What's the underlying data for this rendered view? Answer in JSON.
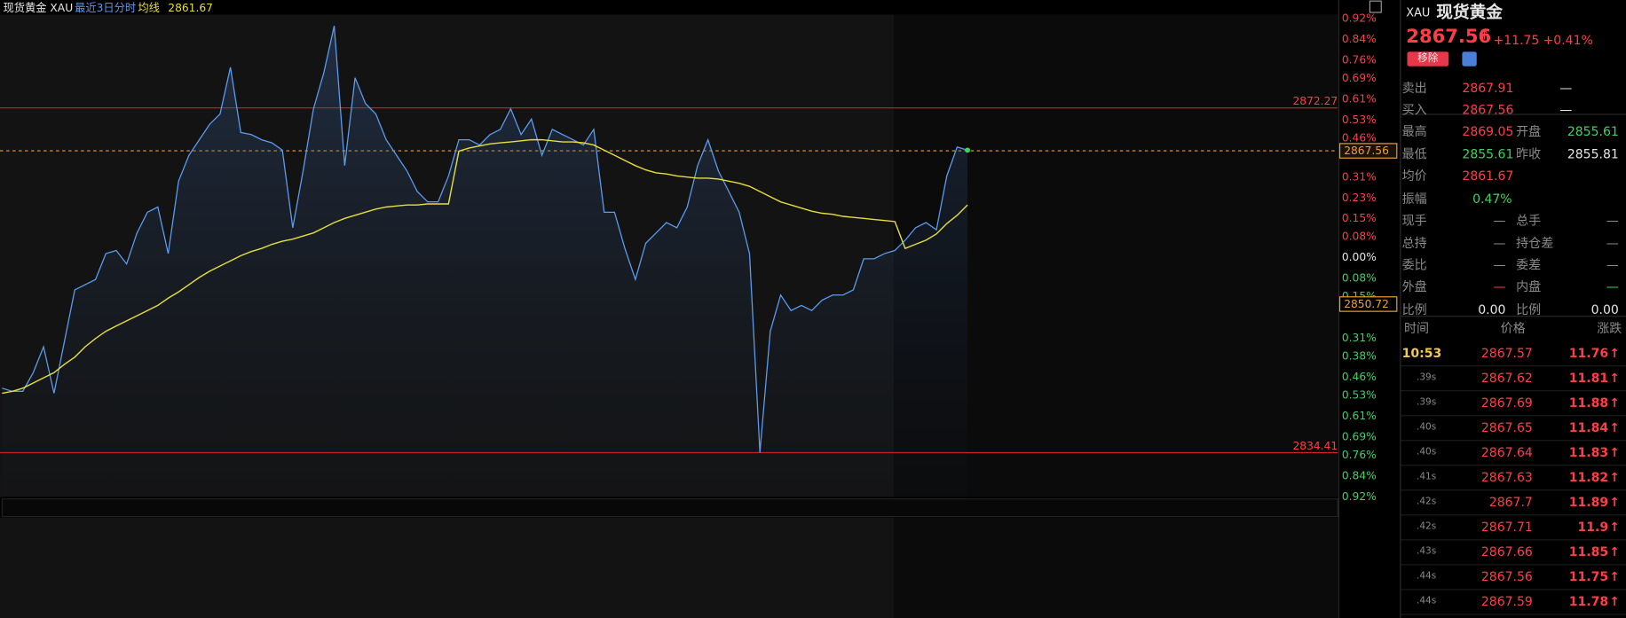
{
  "header": {
    "symbol": "现货黄金 XAU",
    "period": "最近3日分时",
    "ma_value": 2861.67
  },
  "chart_data": {
    "type": "line",
    "ylim": [
      2829.54,
      2882.08
    ],
    "y2lim": [
      -0.92,
      0.92
    ],
    "y2ticks": [
      {
        "value": 0.92,
        "label": "0.92%"
      },
      {
        "value": 0.84,
        "label": "0.84%"
      },
      {
        "value": 0.76,
        "label": "0.76%"
      },
      {
        "value": 0.69,
        "label": "0.69%"
      },
      {
        "value": 0.61,
        "label": "0.61%"
      },
      {
        "value": 0.53,
        "label": "0.53%"
      },
      {
        "value": 0.46,
        "label": "0.46%"
      },
      {
        "value": 0.31,
        "label": "0.31%"
      },
      {
        "value": 0.23,
        "label": "0.23%"
      },
      {
        "value": 0.15,
        "label": "0.15%"
      },
      {
        "value": 0.08,
        "label": "0.08%"
      },
      {
        "value": 0,
        "label": "0.00%"
      },
      {
        "value": -0.08,
        "label": "0.08%"
      },
      {
        "value": -0.15,
        "label": "0.15%"
      },
      {
        "value": -0.31,
        "label": "0.31%"
      },
      {
        "value": -0.38,
        "label": "0.38%"
      },
      {
        "value": -0.46,
        "label": "0.46%"
      },
      {
        "value": -0.53,
        "label": "0.53%"
      },
      {
        "value": -0.61,
        "label": "0.61%"
      },
      {
        "value": -0.69,
        "label": "0.69%"
      },
      {
        "value": -0.76,
        "label": "0.76%"
      },
      {
        "value": -0.84,
        "label": "0.84%"
      },
      {
        "value": -0.92,
        "label": "0.92%"
      }
    ],
    "series": [
      {
        "color": "#5b9cf0",
        "values": [
          2841.48,
          2841.14,
          2841.14,
          2843.19,
          2846.03,
          2840.92,
          2846.6,
          2852.29,
          2852.85,
          2853.42,
          2856.26,
          2856.61,
          2855.13,
          2858.54,
          2860.81,
          2861.38,
          2856.26,
          2864.22,
          2867.07,
          2868.77,
          2870.48,
          2871.61,
          2876.73,
          2869.57,
          2869.34,
          2868.77,
          2868.43,
          2867.63,
          2859.11,
          2865.36,
          2872.18,
          2876.16,
          2881.28,
          2865.93,
          2875.59,
          2872.75,
          2871.61,
          2868.77,
          2867.07,
          2865.36,
          2863.09,
          2861.95,
          2861.95,
          2864.79,
          2868.77,
          2868.77,
          2868.2,
          2869.34,
          2869.91,
          2872.18,
          2869.34,
          2871.05,
          2867.07,
          2869.91,
          2869.34,
          2868.77,
          2868.2,
          2869.91,
          2860.81,
          2860.81,
          2856.83,
          2853.42,
          2857.4,
          2858.54,
          2859.68,
          2859.11,
          2861.38,
          2865.93,
          2868.77,
          2865.36,
          2863.09,
          2860.81,
          2856.26,
          2834.41,
          2847.74,
          2851.72,
          2850.01,
          2850.58,
          2850.01,
          2851.15,
          2851.72,
          2851.72,
          2852.29,
          2855.7,
          2855.7,
          2856.26,
          2856.61,
          2857.74,
          2859.11,
          2859.68,
          2858.88,
          2864.79,
          2867.98,
          2867.63
        ]
      },
      {
        "name": "均线",
        "color": "#e6df3c",
        "values": [
          2840.92,
          2841.14,
          2841.48,
          2842.05,
          2842.62,
          2843.19,
          2844.1,
          2844.89,
          2846.03,
          2846.94,
          2847.74,
          2848.31,
          2848.87,
          2849.44,
          2850.01,
          2850.58,
          2851.38,
          2852.06,
          2852.85,
          2853.65,
          2854.33,
          2854.9,
          2855.47,
          2856.04,
          2856.49,
          2856.83,
          2857.29,
          2857.63,
          2857.86,
          2858.2,
          2858.54,
          2859.11,
          2859.68,
          2860.13,
          2860.47,
          2860.81,
          2861.15,
          2861.38,
          2861.5,
          2861.61,
          2861.61,
          2861.72,
          2861.72,
          2861.72,
          2867.52,
          2867.86,
          2868.09,
          2868.32,
          2868.43,
          2868.54,
          2868.66,
          2868.77,
          2868.77,
          2868.66,
          2868.54,
          2868.54,
          2868.43,
          2868.2,
          2867.63,
          2867.07,
          2866.5,
          2865.93,
          2865.47,
          2865.13,
          2865.02,
          2864.79,
          2864.68,
          2864.56,
          2864.56,
          2864.45,
          2864.22,
          2864.0,
          2863.66,
          2863.09,
          2862.52,
          2861.95,
          2861.61,
          2861.27,
          2860.93,
          2860.7,
          2860.59,
          2860.36,
          2860.24,
          2860.13,
          2860.02,
          2859.9,
          2859.79,
          2856.83,
          2857.29,
          2857.74,
          2858.43,
          2859.56,
          2860.47,
          2861.61
        ]
      }
    ],
    "reference_lines": [
      2872.27,
      2834.41
    ],
    "current_price": 2867.56,
    "cursor_price": 2850.72
  },
  "quote": {
    "code": "XAU",
    "name": "现货黄金",
    "price": 2867.56,
    "change": "+11.75",
    "change_pct": "+0.41%",
    "remove": "移除",
    "rows": [
      [
        "卖出",
        2867.91,
        "—"
      ],
      [
        "买入",
        2867.56,
        "—"
      ],
      [
        "最高",
        2869.05,
        "开盘",
        2855.61
      ],
      [
        "最低",
        2855.61,
        "昨收",
        2855.81
      ],
      [
        "均价",
        2861.67
      ],
      [
        "振幅",
        "0.47%"
      ],
      [
        "现手",
        "—",
        "总手",
        "—"
      ],
      [
        "总持",
        "—",
        "持仓差",
        "—"
      ],
      [
        "委比",
        "—",
        "委差",
        "—"
      ],
      [
        "外盘",
        "—",
        "内盘",
        "—"
      ],
      [
        "比例",
        "0.00",
        "比例",
        "0.00"
      ]
    ]
  },
  "trades": {
    "headers": [
      "时间",
      "价格",
      "涨跌"
    ],
    "rows": [
      [
        "10:53",
        2867.57,
        11.76
      ],
      [
        ".39s",
        2867.62,
        11.81
      ],
      [
        ".39s",
        2867.69,
        11.88
      ],
      [
        ".40s",
        2867.65,
        11.84
      ],
      [
        ".40s",
        2867.64,
        11.83
      ],
      [
        ".41s",
        2867.63,
        11.82
      ],
      [
        ".42s",
        2867.7,
        11.89
      ],
      [
        ".42s",
        2867.71,
        11.9
      ],
      [
        ".43s",
        2867.66,
        11.85
      ],
      [
        ".44s",
        2867.56,
        11.75
      ],
      [
        ".44s",
        2867.59,
        11.78
      ]
    ]
  }
}
